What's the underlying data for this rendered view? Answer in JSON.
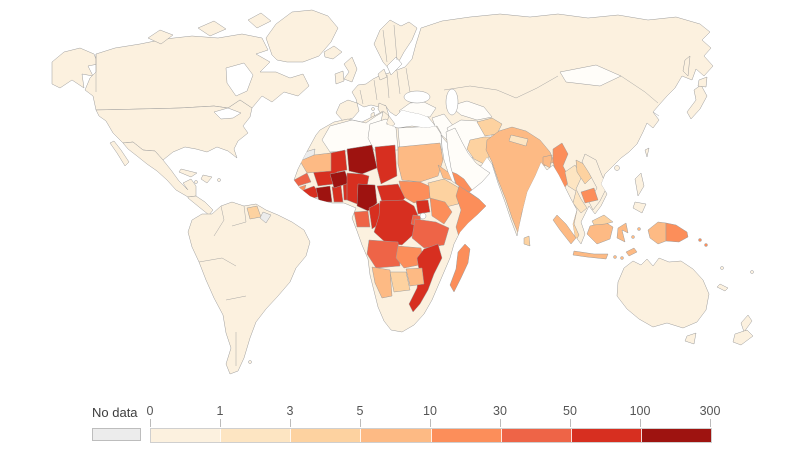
{
  "chart_data": {
    "type": "heatmap",
    "subtype": "world-choropleth-map",
    "legend": {
      "no_data_label": "No data",
      "tick_labels": [
        "0",
        "1",
        "3",
        "5",
        "10",
        "30",
        "50",
        "100",
        "300"
      ]
    },
    "bins": [
      {
        "label": "0–1",
        "color": "#fcf1df"
      },
      {
        "label": "1–3",
        "color": "#fde5c2"
      },
      {
        "label": "3–5",
        "color": "#fdd2a0"
      },
      {
        "label": "5–10",
        "color": "#fdba84"
      },
      {
        "label": "10–30",
        "color": "#fc8e5a"
      },
      {
        "label": "30–50",
        "color": "#ee6447"
      },
      {
        "label": "50–100",
        "color": "#d72f20"
      },
      {
        "label": "100–300",
        "color": "#9e1310"
      }
    ],
    "special_colors": {
      "zero": "#fffdf9",
      "no_data": "#ececec",
      "no_data_border": "#bdbdbd",
      "country_border": "#9c9c9c",
      "ocean": "#ffffff"
    },
    "region_bins": {
      "alaska": 0,
      "canada": 0,
      "arctic-islands": 0,
      "united-states": 0,
      "mexico": 0,
      "central-america": 0,
      "cuba": 0,
      "hispaniola": 0,
      "jamaica": 0,
      "puerto-rico": 0,
      "greenland": 0,
      "iceland": 0,
      "south-america": 0,
      "guyana": 2,
      "french-guiana": "no_data",
      "falkland-islands": 0,
      "eurasia": 0,
      "scandinavia": 0,
      "denmark": 0,
      "united-kingdom": 0,
      "ireland": 0,
      "italy": 0,
      "sicily": 0,
      "sardinia": 0,
      "corsica": 0,
      "turkey": "zero",
      "syria-iraq": "zero",
      "iran": "zero",
      "turkmenistan-uzbekistan": "zero",
      "mongolia": "zero",
      "afghanistan": 2,
      "pakistan": 2,
      "india": 3,
      "nepal": 1,
      "bangladesh": 3,
      "sri-lanka": 2,
      "myanmar": 4,
      "thailand": 1,
      "laos": 2,
      "vietnam": 0,
      "cambodia": 4,
      "malay-peninsula": 2,
      "arabia": "zero",
      "yemen": 4,
      "africa": 0,
      "algeria": "zero",
      "libya": "zero",
      "egypt": "zero",
      "western-sahara": "no_data",
      "mauritania": 3,
      "mali": 6,
      "senegal-gambia": 5,
      "guinea-bissau": 4,
      "guinea": 6,
      "sierra-leone": 7,
      "liberia": 6,
      "cote-divoire": 7,
      "ghana": 6,
      "togo-benin": 6,
      "burkina-faso": 7,
      "niger": 7,
      "nigeria": 6,
      "chad": 6,
      "sudan": 3,
      "eritrea": 3,
      "ethiopia": 2,
      "somalia": 4,
      "south-sudan": 4,
      "central-african-republic": 6,
      "cameroon": 7,
      "equatorial-guinea-gabon": 5,
      "congo": 6,
      "dr-congo": 6,
      "uganda": 6,
      "kenya": 4,
      "rwanda-burundi": 5,
      "tanzania": 5,
      "angola": 5,
      "zambia": 4,
      "malawi": 4,
      "mozambique": 6,
      "zimbabwe": 3,
      "botswana": 2,
      "namibia": 3,
      "madagascar": 4,
      "sumatra": 3,
      "java": 3,
      "kalimantan": 3,
      "malaysia-borneo": 2,
      "sulawesi": 3,
      "lesser-sunda": 3,
      "timor": 3,
      "maluku": 3,
      "philippines": 0,
      "taiwan": 0,
      "hainan": 0,
      "japan": 0,
      "sakhalin": 0,
      "new-guinea-west": 3,
      "new-guinea-east": 4,
      "solomon-islands": 4,
      "new-caledonia": 0,
      "fiji": 0,
      "vanuatu": 0,
      "australia": 0,
      "tasmania": 0,
      "new-zealand": 0
    }
  }
}
